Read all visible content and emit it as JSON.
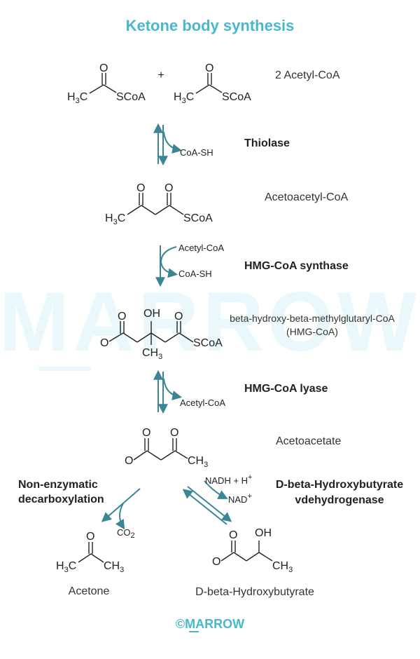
{
  "title": "Ketone body synthesis",
  "watermark": "MARROW",
  "footer": "©MARROW",
  "atoms": {
    "O": "O",
    "SCoA": "SCoA",
    "H3C_main": "H",
    "C": "C",
    "CH": "CH",
    "OH": "OH",
    "three": "3",
    "plus_sign": "+",
    "two": "2",
    "plus_charge": "+"
  },
  "molecules": {
    "acetyl_coa": "2 Acetyl-CoA",
    "acetoacetyl_coa": "Acetoacetyl-CoA",
    "hmg_coa_line1": "beta-hydroxy-beta-methylglutaryl-CoA",
    "hmg_coa_line2": "(HMG-CoA)",
    "acetoacetate": "Acetoacetate",
    "acetone": "Acetone",
    "hydroxybutyrate": "D-beta-Hydroxybutyrate"
  },
  "enzymes": {
    "thiolase": "Thiolase",
    "hmg_synthase": "HMG-CoA synthase",
    "hmg_lyase": "HMG-CoA lyase",
    "non_enzymatic_1": "Non-enzymatic",
    "non_enzymatic_2": "decarboxylation",
    "dehydrogenase_1": "D-beta-Hydroxybutyrate",
    "dehydrogenase_2": "vdehydrogenase"
  },
  "cofactors": {
    "coa_sh": "CoA-SH",
    "acetyl_coa": "Acetyl-CoA",
    "co": "CO",
    "nadh_h": "NADH + H",
    "nad": "NAD"
  },
  "colors": {
    "title": "#4ab8cc",
    "arrow": "#3a8696",
    "watermark": "#eaf7fb"
  }
}
